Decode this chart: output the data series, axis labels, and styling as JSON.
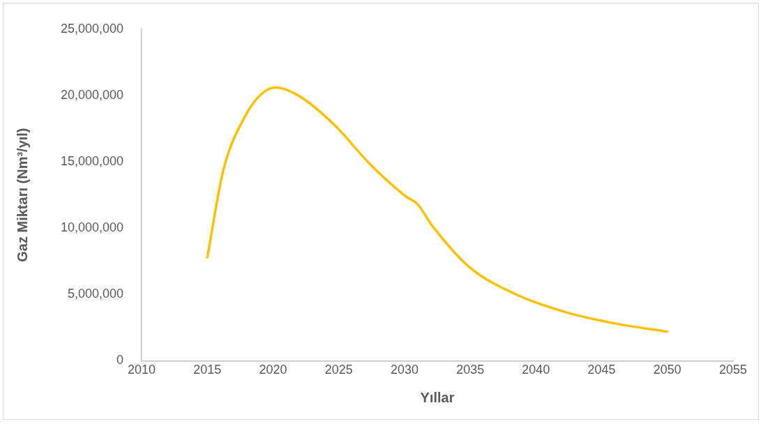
{
  "chart_data": {
    "type": "line",
    "xlabel": "Yıllar",
    "ylabel": "Gaz Miktarı (Nm³/yıl)",
    "xlim": [
      2010,
      2055
    ],
    "xticks": [
      2010,
      2015,
      2020,
      2025,
      2030,
      2035,
      2040,
      2045,
      2050,
      2055
    ],
    "ylim": [
      0,
      25000000
    ],
    "yticks": [
      {
        "value": 0,
        "label": "0"
      },
      {
        "value": 5000000,
        "label": "5,000,000"
      },
      {
        "value": 10000000,
        "label": "10,000,000"
      },
      {
        "value": 15000000,
        "label": "15,000,000"
      },
      {
        "value": 20000000,
        "label": "20,000,000"
      },
      {
        "value": 25000000,
        "label": "25,000,000"
      }
    ],
    "grid": false,
    "legend": false,
    "marker": "none",
    "line_style": "solid",
    "series": [
      {
        "color": "#ffc000",
        "x": [
          2015,
          2016.2,
          2017.8,
          2019.1,
          2020.2,
          2022,
          2024.7,
          2027.4,
          2030.1,
          2031,
          2032.1,
          2034.9,
          2038.5,
          2042.5,
          2046.1,
          2050
        ],
        "values": [
          7800000,
          14300000,
          18300000,
          20100000,
          20600000,
          19950000,
          17750000,
          14800000,
          12400000,
          11800000,
          10200000,
          7100000,
          5000000,
          3600000,
          2800000,
          2200000
        ]
      }
    ]
  }
}
